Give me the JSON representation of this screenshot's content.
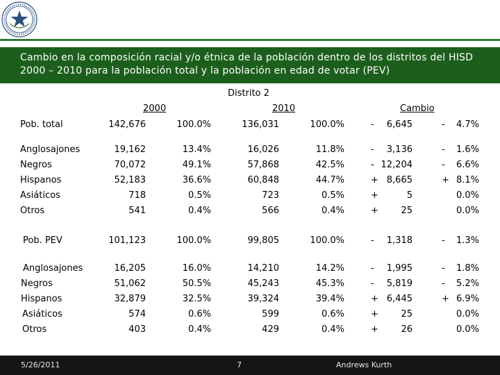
{
  "slide": {
    "title": "Cambio en la composición racial y/o étnica de la población dentro de los distritos del HISD 2000 – 2010 para la población total y la población en edad de votar (PEV)",
    "district": "Distrito 2",
    "col_2000": "2000",
    "col_2010": "2010",
    "col_change": "Cambio"
  },
  "rows": [
    {
      "label": "Pob. total",
      "v2000": "142,676",
      "p2000": "100.0%",
      "v2010": "136,031",
      "p2010": "100.0%",
      "sign": "-",
      "change": "6,645",
      "psign": "-",
      "pchange": "4.7%"
    },
    {
      "label": "Anglosajones",
      "v2000": "19,162",
      "p2000": "13.4%",
      "v2010": "16,026",
      "p2010": "11.8%",
      "sign": "-",
      "change": "3,136",
      "psign": "-",
      "pchange": "1.6%"
    },
    {
      "label": "Negros",
      "v2000": "70,072",
      "p2000": "49.1%",
      "v2010": "57,868",
      "p2010": "42.5%",
      "sign": "-",
      "change": "12,204",
      "psign": "-",
      "pchange": "6.6%"
    },
    {
      "label": "Hispanos",
      "v2000": "52,183",
      "p2000": "36.6%",
      "v2010": "60,848",
      "p2010": "44.7%",
      "sign": "+",
      "change": "8,665",
      "psign": "+",
      "pchange": "8.1%"
    },
    {
      "label": "Asiáticos",
      "v2000": "718",
      "p2000": "0.5%",
      "v2010": "723",
      "p2010": "0.5%",
      "sign": "+",
      "change": "5",
      "psign": "",
      "pchange": "0.0%"
    },
    {
      "label": "Otros",
      "v2000": "541",
      "p2000": "0.4%",
      "v2010": "566",
      "p2010": "0.4%",
      "sign": "+",
      "change": "25",
      "psign": "",
      "pchange": "0.0%"
    },
    {
      "label": "Pob. PEV",
      "v2000": "101,123",
      "p2000": "100.0%",
      "v2010": "99,805",
      "p2010": "100.0%",
      "sign": "-",
      "change": "1,318",
      "psign": "-",
      "pchange": "1.3%"
    },
    {
      "label": "Anglosajones",
      "v2000": "16,205",
      "p2000": "16.0%",
      "v2010": "14,210",
      "p2010": "14.2%",
      "sign": "-",
      "change": "1,995",
      "psign": "-",
      "pchange": "1.8%"
    },
    {
      "label": "Negros",
      "v2000": "51,062",
      "p2000": "50.5%",
      "v2010": "45,243",
      "p2010": "45.3%",
      "sign": "-",
      "change": "5,819",
      "psign": "-",
      "pchange": "5.2%"
    },
    {
      "label": "Hispanos",
      "v2000": "32,879",
      "p2000": "32.5%",
      "v2010": "39,324",
      "p2010": "39.4%",
      "sign": "+",
      "change": "6,445",
      "psign": "+",
      "pchange": "6.9%"
    },
    {
      "label": "Asiáticos",
      "v2000": "574",
      "p2000": "0.6%",
      "v2010": "599",
      "p2010": "0.6%",
      "sign": "+",
      "change": "25",
      "psign": "",
      "pchange": "0.0%"
    },
    {
      "label": "Otros",
      "v2000": "403",
      "p2000": "0.4%",
      "v2010": "429",
      "p2010": "0.4%",
      "sign": "+",
      "change": "26",
      "psign": "",
      "pchange": "0.0%"
    }
  ],
  "footer": {
    "date": "5/26/2011",
    "page": "7",
    "firm": "Andrews Kurth"
  },
  "colors": {
    "band": "#1c5f1c",
    "rule": "#2f7a2f",
    "footer": "#151515"
  }
}
